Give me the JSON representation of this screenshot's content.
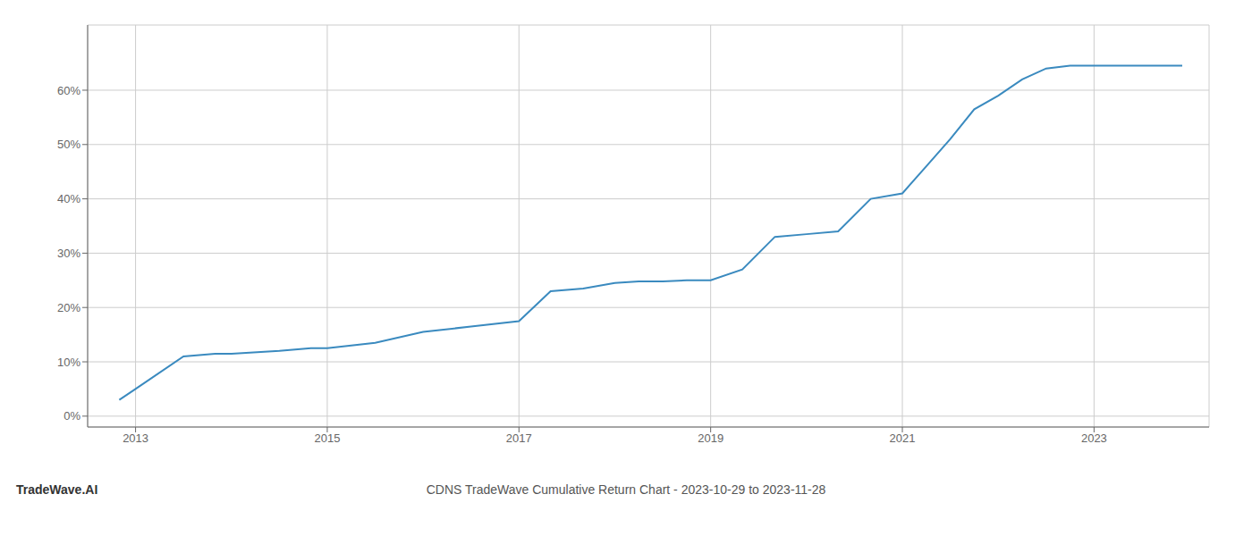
{
  "chart_data": {
    "type": "line",
    "title": "CDNS TradeWave Cumulative Return Chart - 2023-10-29 to 2023-11-28",
    "annotations": [
      "TradeWave.AI"
    ],
    "x": [
      2012.83,
      2013.0,
      2013.5,
      2013.83,
      2014.0,
      2014.5,
      2014.83,
      2015.0,
      2015.5,
      2016.0,
      2016.5,
      2017.0,
      2017.33,
      2017.67,
      2018.0,
      2018.25,
      2018.5,
      2018.75,
      2019.0,
      2019.33,
      2019.67,
      2020.0,
      2020.33,
      2020.67,
      2021.0,
      2021.25,
      2021.5,
      2021.75,
      2022.0,
      2022.25,
      2022.5,
      2022.75,
      2023.0,
      2023.92
    ],
    "values": [
      0.03,
      0.05,
      0.11,
      0.115,
      0.115,
      0.12,
      0.125,
      0.125,
      0.135,
      0.155,
      0.165,
      0.175,
      0.23,
      0.235,
      0.245,
      0.248,
      0.248,
      0.25,
      0.25,
      0.27,
      0.33,
      0.335,
      0.34,
      0.4,
      0.41,
      0.46,
      0.51,
      0.565,
      0.59,
      0.62,
      0.64,
      0.645,
      0.645,
      0.645
    ],
    "color": "#3a8abf",
    "xlim": [
      2012.5,
      2024.2
    ],
    "ylim": [
      -0.02,
      0.72
    ],
    "xticks": [
      2013,
      2015,
      2017,
      2019,
      2021,
      2023
    ],
    "yticks": [
      {
        "value": 0.0,
        "label": "0%"
      },
      {
        "value": 0.1,
        "label": "10%"
      },
      {
        "value": 0.2,
        "label": "20%"
      },
      {
        "value": 0.3,
        "label": "30%"
      },
      {
        "value": 0.4,
        "label": "40%"
      },
      {
        "value": 0.5,
        "label": "50%"
      },
      {
        "value": 0.6,
        "label": "60%"
      }
    ],
    "grid": true
  }
}
